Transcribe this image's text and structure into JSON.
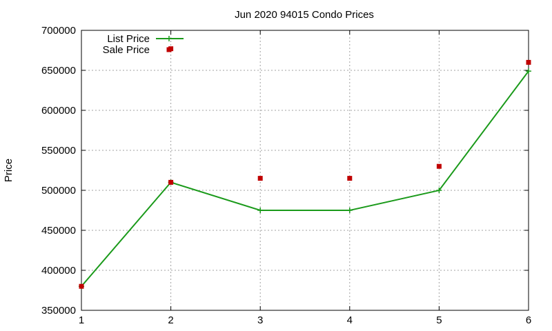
{
  "chart_data": {
    "type": "line",
    "title": "Jun 2020 94015 Condo Prices",
    "xlabel": "",
    "ylabel": "Price",
    "x": [
      1,
      2,
      3,
      4,
      5,
      6
    ],
    "xlim": [
      1,
      6
    ],
    "ylim": [
      350000,
      700000
    ],
    "xticks": [
      "1",
      "2",
      "3",
      "4",
      "5",
      "6"
    ],
    "yticks": [
      "350000",
      "400000",
      "450000",
      "500000",
      "550000",
      "600000",
      "650000",
      "700000"
    ],
    "grid": true,
    "legend_position": "top-left",
    "series": [
      {
        "name": "List Price",
        "style": "line-with-plus-markers",
        "color": "#1a9a1a",
        "values": [
          380000,
          510000,
          475000,
          475000,
          500000,
          649000
        ]
      },
      {
        "name": "Sale Price",
        "style": "square-markers",
        "color": "#c00000",
        "values": [
          380000,
          510000,
          515000,
          515000,
          530000,
          660000
        ]
      }
    ],
    "legend_extra_marker": {
      "series": "Sale Price",
      "x": 2,
      "y": 677000
    }
  }
}
